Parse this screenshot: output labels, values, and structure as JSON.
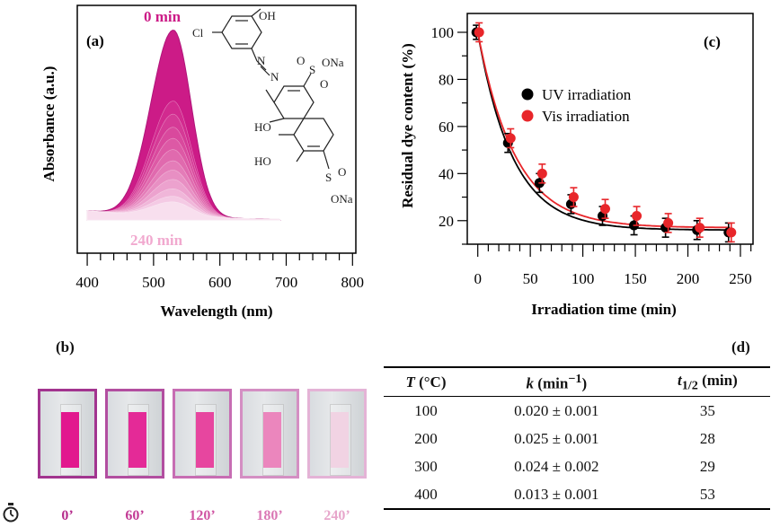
{
  "chart_data": [
    {
      "type": "line",
      "panel": "(a)",
      "xlabel": "Wavelength (nm)",
      "ylabel": "Absorbance  (a.u.)",
      "xlim": [
        385,
        805
      ],
      "xticks": [
        400,
        500,
        600,
        700,
        800
      ],
      "annotations": {
        "top": "0 min",
        "bottom": "240 min"
      },
      "peak_nm": 530,
      "series_peaks": [
        1.0,
        0.62,
        0.55,
        0.48,
        0.42,
        0.36,
        0.3,
        0.25,
        0.2,
        0.15,
        0.11,
        0.08
      ],
      "series_colors": [
        "#cc1b87",
        "#d22a8f",
        "#d53a96",
        "#d9499d",
        "#dd59a5",
        "#e06aae",
        "#e47cb8",
        "#e88fc3",
        "#eca2ce",
        "#f0b6d9",
        "#f4cae4",
        "#f8dfee"
      ],
      "molecule_labels": {
        "cl": "Cl",
        "oh": "OH",
        "so3na_top": "ONa",
        "s_top": "S",
        "o_top": "O",
        "ho1": "HO",
        "ho2": "HO",
        "s_bot": "S",
        "o_bot": "O",
        "so3na_bot": "ONa",
        "so3": "O"
      }
    },
    {
      "type": "scatter",
      "panel": "(c)",
      "xlabel": "Irradiation time (min)",
      "ylabel": "Residual dye content (%)",
      "xlim": [
        -10,
        262
      ],
      "ylim": [
        10,
        108
      ],
      "xticks": [
        0,
        50,
        100,
        150,
        200,
        250
      ],
      "yticks": [
        20,
        40,
        60,
        80,
        100
      ],
      "legend_position": "right-middle",
      "series": [
        {
          "name": "UV irradiation",
          "color": "#000000",
          "x": [
            0,
            30,
            60,
            90,
            120,
            150,
            180,
            210,
            240
          ],
          "y": [
            100,
            53,
            36,
            27,
            22,
            18,
            17,
            16,
            15
          ],
          "err": [
            3,
            4,
            4,
            4,
            4,
            4,
            4,
            4,
            4
          ]
        },
        {
          "name": "Vis irradiation",
          "color": "#e8262a",
          "x": [
            0,
            30,
            60,
            90,
            120,
            150,
            180,
            210,
            240
          ],
          "y": [
            100,
            55,
            40,
            30,
            25,
            22,
            19,
            17,
            15
          ],
          "err": [
            4,
            4,
            4,
            4,
            4,
            4,
            4,
            4,
            4
          ]
        }
      ],
      "fits": [
        {
          "color": "#000000",
          "plateau": 16.0,
          "k": 0.03
        },
        {
          "color": "#e8262a",
          "plateau": 17.0,
          "k": 0.028
        }
      ]
    }
  ],
  "panel_b": {
    "label": "(b)",
    "vials": [
      {
        "time": "0’",
        "border": "#a2348f",
        "liquid": "#e2188e",
        "label_color": "#b52c8c"
      },
      {
        "time": "60’",
        "border": "#b24ea0",
        "liquid": "#e42a97",
        "label_color": "#c23b95"
      },
      {
        "time": "120’",
        "border": "#c76db3",
        "liquid": "#e7469f",
        "label_color": "#d055a3"
      },
      {
        "time": "180’",
        "border": "#d48fc3",
        "liquid": "#eb86bd",
        "label_color": "#da78b5"
      },
      {
        "time": "240’",
        "border": "#e4b3d6",
        "liquid": "#f1d3e3",
        "label_color": "#e7a6cb"
      }
    ]
  },
  "panel_d": {
    "label": "(d)",
    "headers": {
      "t": "T",
      "t_unit": " (°C)",
      "k": "k",
      "k_unit": " (min",
      "k_exp": "−1",
      "k_close": ")",
      "half": "t",
      "half_sub": "1/2",
      "half_unit": " (min)"
    },
    "rows": [
      {
        "T": "100",
        "k": "0.020 ± 0.001",
        "half": "35"
      },
      {
        "T": "200",
        "k": "0.025 ± 0.001",
        "half": "28"
      },
      {
        "T": "300",
        "k": "0.024 ± 0.002",
        "half": "29"
      },
      {
        "T": "400",
        "k": "0.013 ± 0.001",
        "half": "53"
      }
    ]
  },
  "icons": {
    "timer": "stopwatch-icon"
  }
}
